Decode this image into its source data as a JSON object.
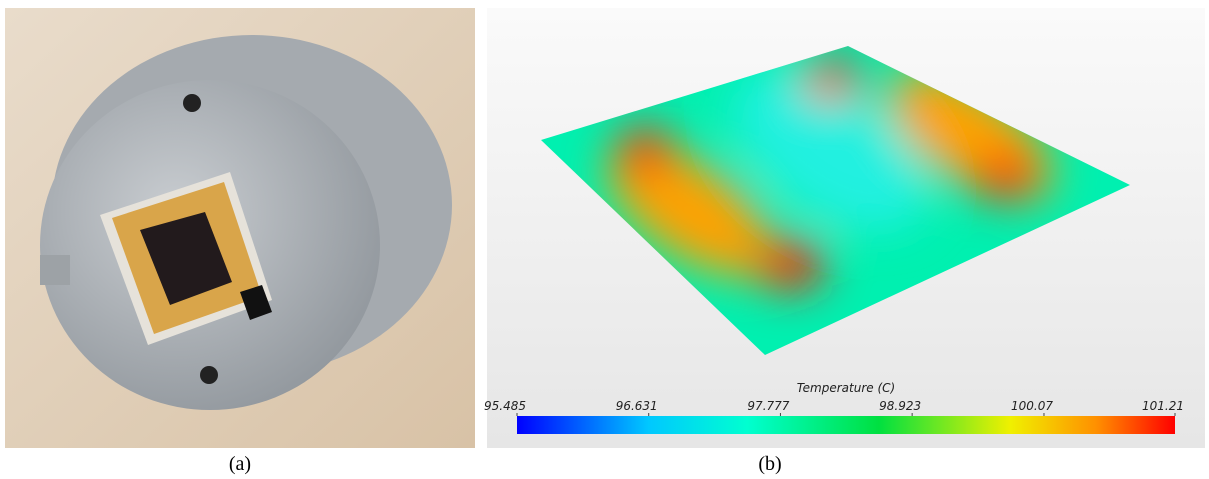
{
  "panel_a": {
    "caption": "(a)"
  },
  "panel_b": {
    "caption": "(b)",
    "colorbar": {
      "title": "Temperature (C)",
      "range": [
        95.485,
        101.21
      ],
      "ticks": [
        95.485,
        96.631,
        97.777,
        98.923,
        100.07,
        101.21
      ]
    }
  }
}
